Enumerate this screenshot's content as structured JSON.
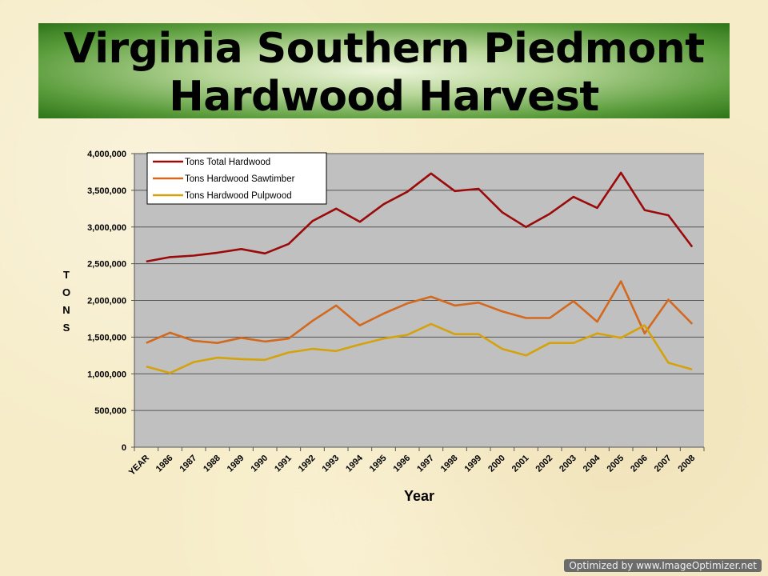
{
  "title": {
    "line1": "Virginia Southern Piedmont",
    "line2": "Hardwood Harvest"
  },
  "watermark": "Optimized by www.ImageOptimizer.net",
  "colors": {
    "plot_background": "#c0c0c0",
    "total": "#9b0a0a",
    "sawtimber": "#d2691e",
    "pulpwood": "#d4a20c"
  },
  "chart_data": {
    "type": "line",
    "title": "",
    "xlabel": "Year",
    "ylabel": "TONS",
    "categories": [
      "YEAR",
      "1986",
      "1987",
      "1988",
      "1989",
      "1990",
      "1991",
      "1992",
      "1993",
      "1994",
      "1995",
      "1996",
      "1997",
      "1998",
      "1999",
      "2000",
      "2001",
      "2002",
      "2003",
      "2004",
      "2005",
      "2006",
      "2007",
      "2008"
    ],
    "ylim": [
      0,
      4000000
    ],
    "yticks": [
      0,
      500000,
      1000000,
      1500000,
      2000000,
      2500000,
      3000000,
      3500000,
      4000000
    ],
    "ytick_labels": [
      "0",
      "500,000",
      "1,000,000",
      "1,500,000",
      "2,000,000",
      "2,500,000",
      "3,000,000",
      "3,500,000",
      "4,000,000"
    ],
    "grid": true,
    "legend_position": "top-left",
    "series": [
      {
        "name": "Tons Total Hardwood",
        "color_key": "total",
        "values": [
          2530000,
          2590000,
          2610000,
          2650000,
          2700000,
          2640000,
          2770000,
          3080000,
          3250000,
          3070000,
          3310000,
          3480000,
          3730000,
          3490000,
          3520000,
          3200000,
          3000000,
          3180000,
          3410000,
          3260000,
          3740000,
          3230000,
          3160000,
          2730000
        ]
      },
      {
        "name": "Tons Hardwood Sawtimber",
        "color_key": "sawtimber",
        "values": [
          1420000,
          1560000,
          1450000,
          1420000,
          1490000,
          1440000,
          1480000,
          1720000,
          1930000,
          1660000,
          1820000,
          1960000,
          2050000,
          1930000,
          1970000,
          1850000,
          1760000,
          1760000,
          1990000,
          1710000,
          2260000,
          1550000,
          2010000,
          1680000
        ]
      },
      {
        "name": "Tons Hardwood Pulpwood",
        "color_key": "pulpwood",
        "values": [
          1100000,
          1010000,
          1160000,
          1220000,
          1200000,
          1190000,
          1290000,
          1340000,
          1310000,
          1400000,
          1480000,
          1530000,
          1680000,
          1540000,
          1540000,
          1340000,
          1250000,
          1420000,
          1420000,
          1550000,
          1490000,
          1660000,
          1150000,
          1060000
        ]
      }
    ]
  }
}
